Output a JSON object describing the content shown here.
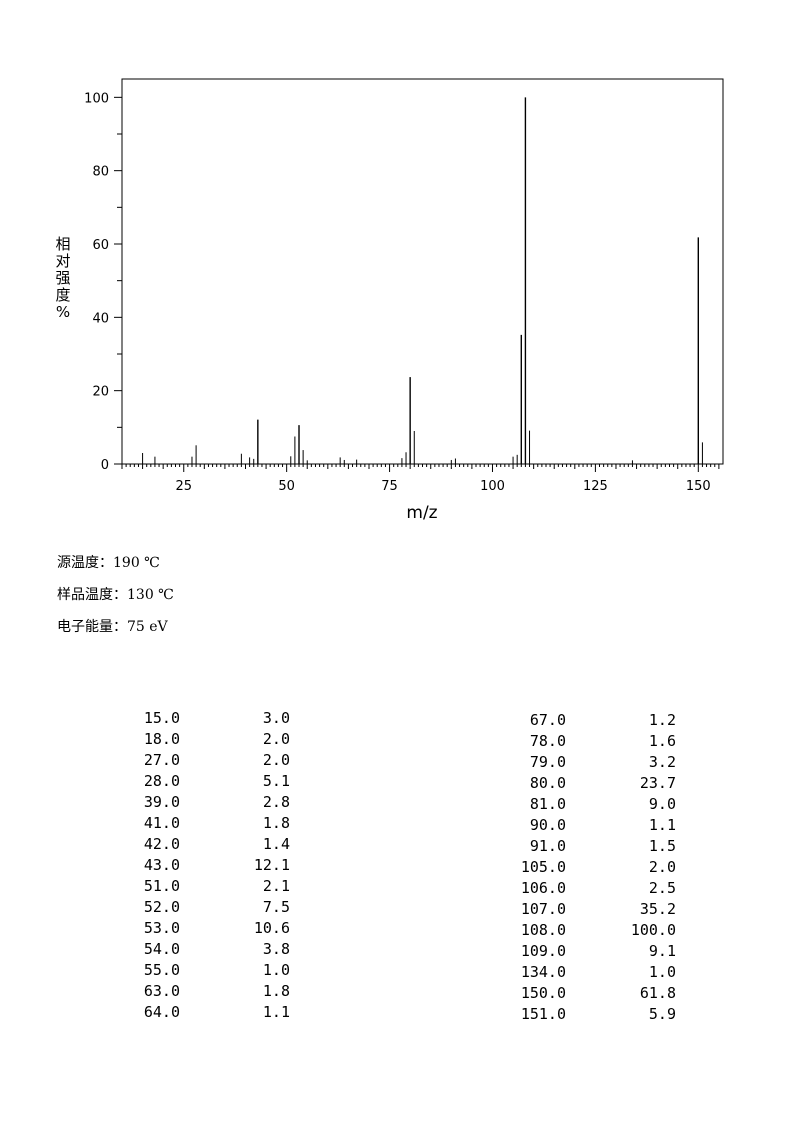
{
  "chart_data": {
    "type": "bar",
    "xlabel": "m/z",
    "ylabel": "相对强度%",
    "ylabel_chars": [
      "相",
      "对",
      "强",
      "度",
      "%"
    ],
    "xlim": [
      10,
      156
    ],
    "ylim": [
      0,
      105
    ],
    "xticks": [
      25,
      50,
      75,
      100,
      125,
      150
    ],
    "yticks": [
      0,
      20,
      40,
      60,
      80,
      100
    ],
    "grid": false,
    "peaks": [
      {
        "mz": 15.0,
        "intensity": 3.0
      },
      {
        "mz": 18.0,
        "intensity": 2.0
      },
      {
        "mz": 27.0,
        "intensity": 2.0
      },
      {
        "mz": 28.0,
        "intensity": 5.1
      },
      {
        "mz": 39.0,
        "intensity": 2.8
      },
      {
        "mz": 41.0,
        "intensity": 1.8
      },
      {
        "mz": 42.0,
        "intensity": 1.4
      },
      {
        "mz": 43.0,
        "intensity": 12.1
      },
      {
        "mz": 51.0,
        "intensity": 2.1
      },
      {
        "mz": 52.0,
        "intensity": 7.5
      },
      {
        "mz": 53.0,
        "intensity": 10.6
      },
      {
        "mz": 54.0,
        "intensity": 3.8
      },
      {
        "mz": 55.0,
        "intensity": 1.0
      },
      {
        "mz": 63.0,
        "intensity": 1.8
      },
      {
        "mz": 64.0,
        "intensity": 1.1
      },
      {
        "mz": 67.0,
        "intensity": 1.2
      },
      {
        "mz": 78.0,
        "intensity": 1.6
      },
      {
        "mz": 79.0,
        "intensity": 3.2
      },
      {
        "mz": 80.0,
        "intensity": 23.7
      },
      {
        "mz": 81.0,
        "intensity": 9.0
      },
      {
        "mz": 90.0,
        "intensity": 1.1
      },
      {
        "mz": 91.0,
        "intensity": 1.5
      },
      {
        "mz": 105.0,
        "intensity": 2.0
      },
      {
        "mz": 106.0,
        "intensity": 2.5
      },
      {
        "mz": 107.0,
        "intensity": 35.2
      },
      {
        "mz": 108.0,
        "intensity": 100.0
      },
      {
        "mz": 109.0,
        "intensity": 9.1
      },
      {
        "mz": 134.0,
        "intensity": 1.0
      },
      {
        "mz": 150.0,
        "intensity": 61.8
      },
      {
        "mz": 151.0,
        "intensity": 5.9
      }
    ]
  },
  "conditions": {
    "source_temp": "源温度：190 ℃",
    "sample_temp": "样品温度：130 ℃",
    "electron_energy": "电子能量：75 eV"
  },
  "peak_table": {
    "left": [
      {
        "mz": "15.0",
        "ab": "3.0"
      },
      {
        "mz": "18.0",
        "ab": "2.0"
      },
      {
        "mz": "27.0",
        "ab": "2.0"
      },
      {
        "mz": "28.0",
        "ab": "5.1"
      },
      {
        "mz": "39.0",
        "ab": "2.8"
      },
      {
        "mz": "41.0",
        "ab": "1.8"
      },
      {
        "mz": "42.0",
        "ab": "1.4"
      },
      {
        "mz": "43.0",
        "ab": "12.1"
      },
      {
        "mz": "51.0",
        "ab": "2.1"
      },
      {
        "mz": "52.0",
        "ab": "7.5"
      },
      {
        "mz": "53.0",
        "ab": "10.6"
      },
      {
        "mz": "54.0",
        "ab": "3.8"
      },
      {
        "mz": "55.0",
        "ab": "1.0"
      },
      {
        "mz": "63.0",
        "ab": "1.8"
      },
      {
        "mz": "64.0",
        "ab": "1.1"
      }
    ],
    "right": [
      {
        "mz": "67.0",
        "ab": "1.2"
      },
      {
        "mz": "78.0",
        "ab": "1.6"
      },
      {
        "mz": "79.0",
        "ab": "3.2"
      },
      {
        "mz": "80.0",
        "ab": "23.7"
      },
      {
        "mz": "81.0",
        "ab": "9.0"
      },
      {
        "mz": "90.0",
        "ab": "1.1"
      },
      {
        "mz": "91.0",
        "ab": "1.5"
      },
      {
        "mz": "105.0",
        "ab": "2.0"
      },
      {
        "mz": "106.0",
        "ab": "2.5"
      },
      {
        "mz": "107.0",
        "ab": "35.2"
      },
      {
        "mz": "108.0",
        "ab": "100.0"
      },
      {
        "mz": "109.0",
        "ab": "9.1"
      },
      {
        "mz": "134.0",
        "ab": "1.0"
      },
      {
        "mz": "150.0",
        "ab": "61.8"
      },
      {
        "mz": "151.0",
        "ab": "5.9"
      }
    ]
  }
}
